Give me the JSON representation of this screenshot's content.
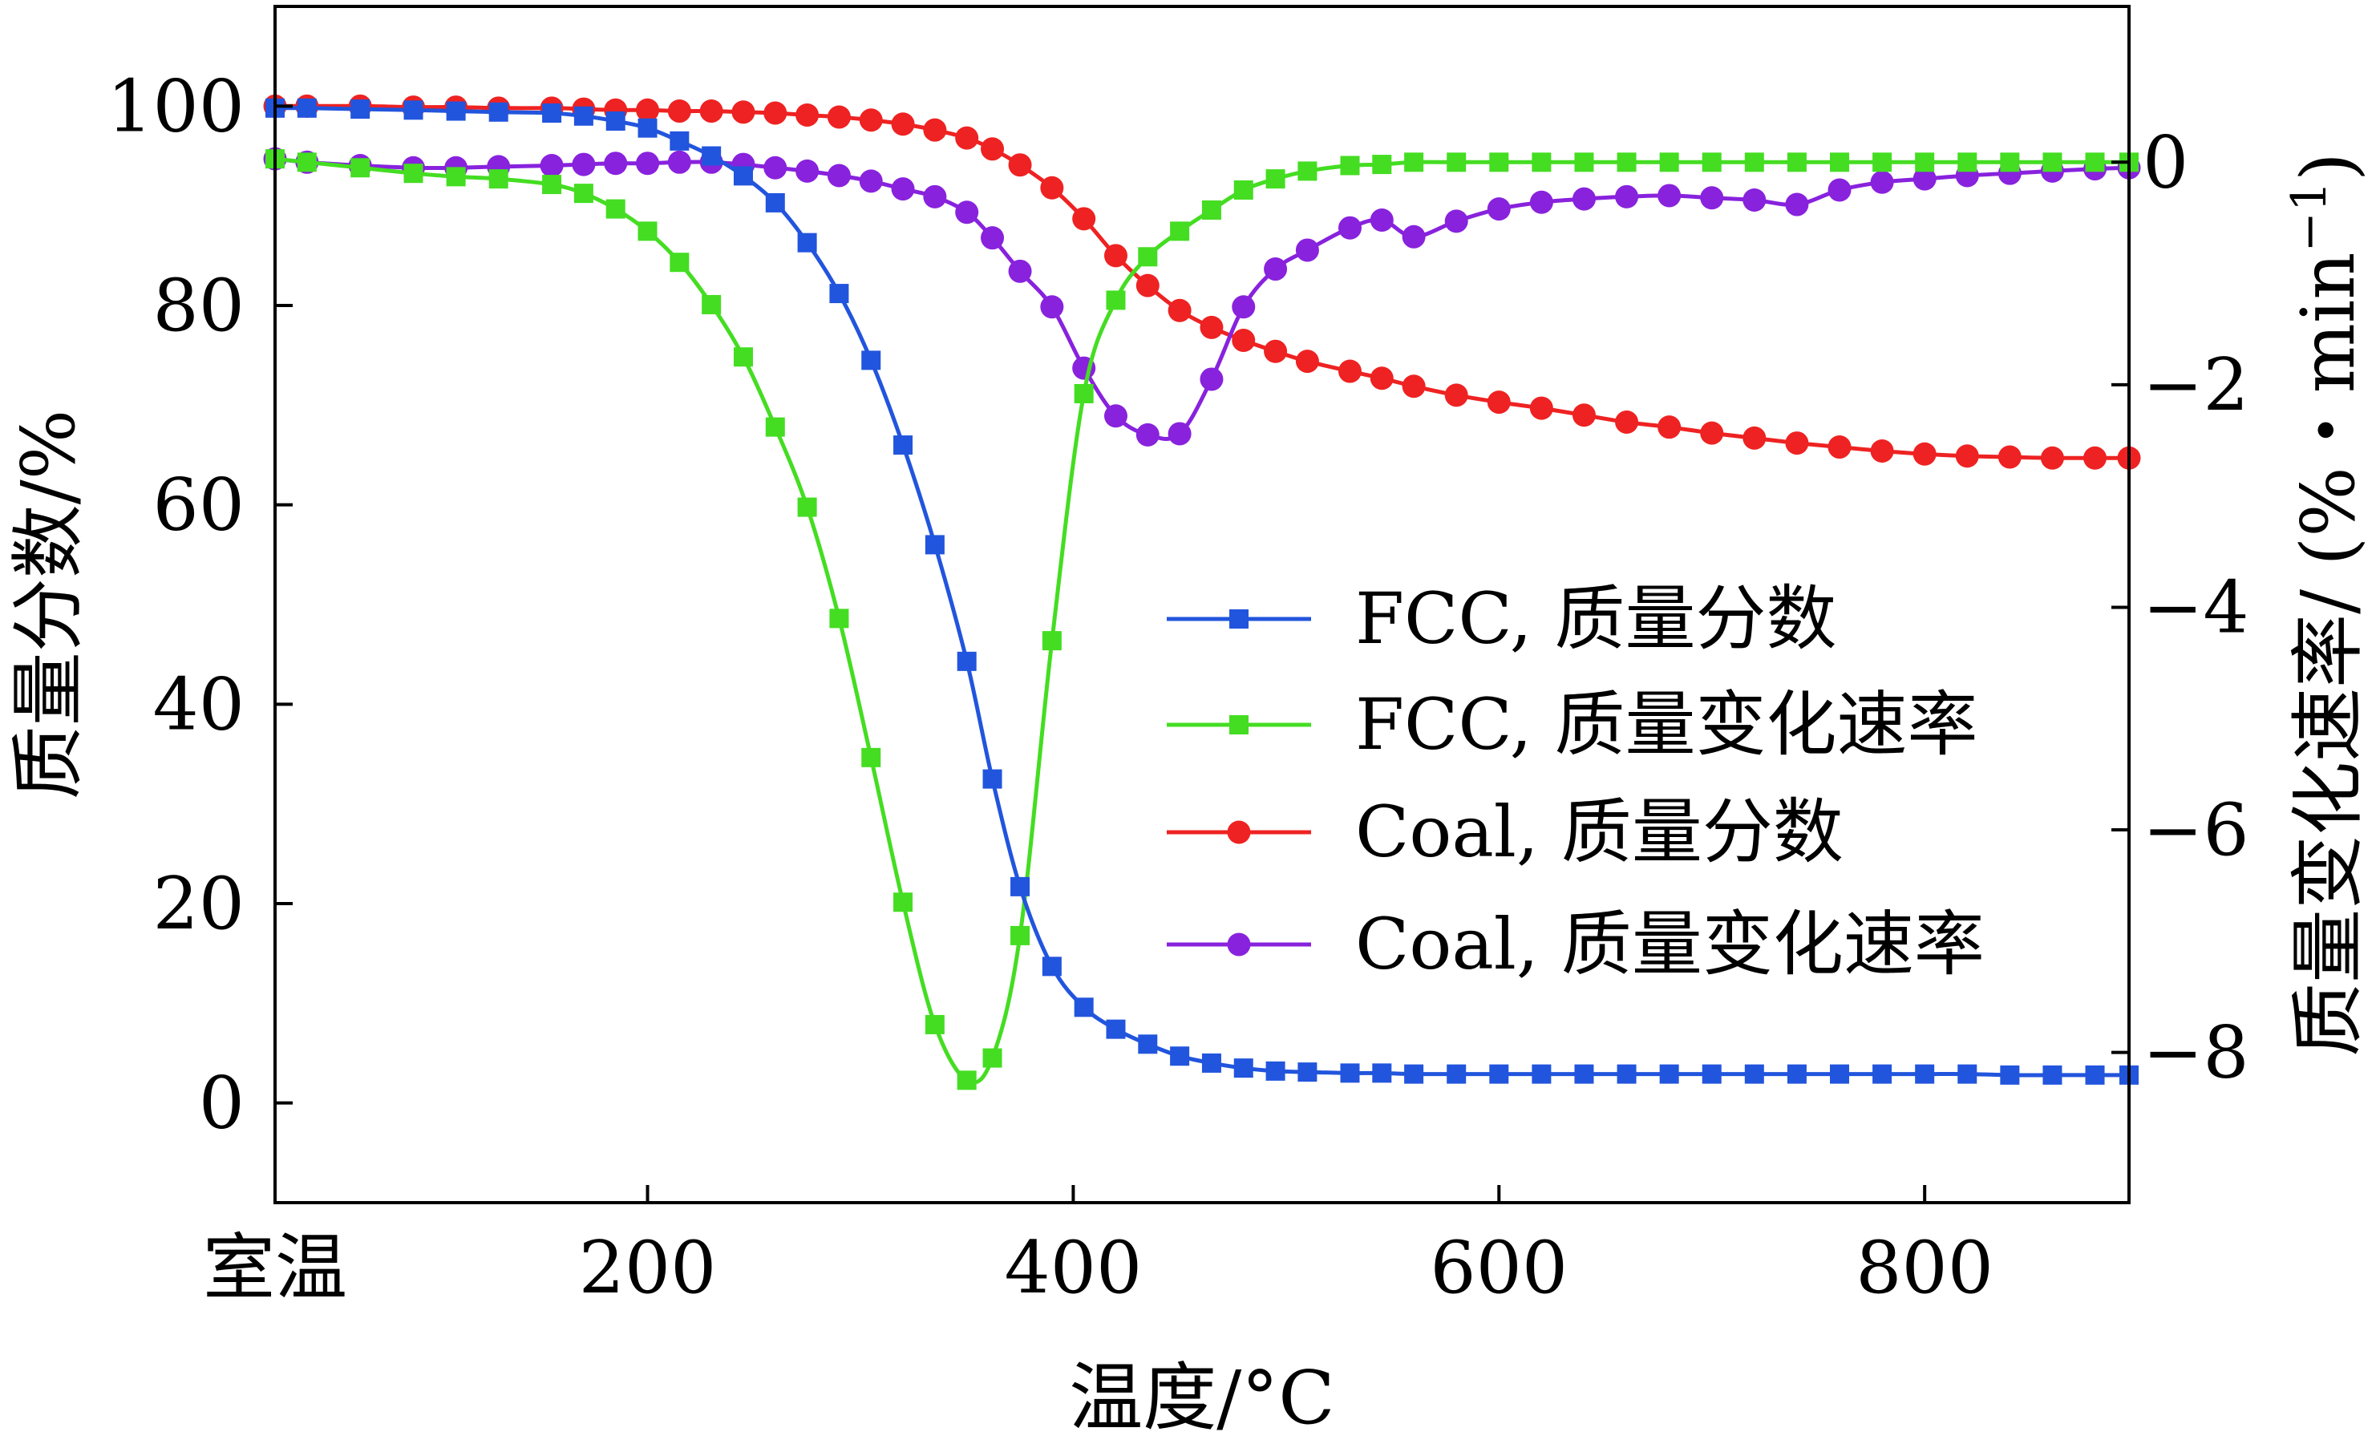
{
  "chart_data": {
    "type": "line",
    "xlabel": "温度/°C",
    "ylabel_left": "质量分数/%",
    "ylabel_right": "质量变化速率/ (%・min",
    "ylabel_right_sup": "−1",
    "ylabel_right_close": ")",
    "x_ticks": [
      {
        "v": 25,
        "label": "室温"
      },
      {
        "v": 200,
        "label": "200"
      },
      {
        "v": 400,
        "label": "400"
      },
      {
        "v": 600,
        "label": "600"
      },
      {
        "v": 800,
        "label": "800"
      }
    ],
    "y_left_ticks": [
      {
        "v": 0,
        "label": "0"
      },
      {
        "v": 20,
        "label": "20"
      },
      {
        "v": 40,
        "label": "40"
      },
      {
        "v": 60,
        "label": "60"
      },
      {
        "v": 80,
        "label": "80"
      },
      {
        "v": 100,
        "label": "100"
      }
    ],
    "y_right_ticks": [
      {
        "v": 0,
        "label": "0"
      },
      {
        "v": -2,
        "label": "−2"
      },
      {
        "v": -4,
        "label": "−4"
      },
      {
        "v": -6,
        "label": "−6"
      },
      {
        "v": -8,
        "label": "−8"
      }
    ],
    "xlim": [
      25,
      896
    ],
    "ylim_left": [
      -10,
      110
    ],
    "ylim_right": [
      -9.35,
      1.4
    ],
    "grid": false,
    "legend_position": "middle-right",
    "series": [
      {
        "name": "FCC, 质量分数",
        "axis": "left",
        "marker": "square",
        "color": "#2255dd",
        "x": [
          25,
          40,
          65,
          90,
          110,
          130,
          155,
          170,
          185,
          200,
          215,
          230,
          245,
          260,
          275,
          290,
          305,
          320,
          335,
          350,
          362,
          375,
          390,
          405,
          420,
          435,
          450,
          465,
          480,
          495,
          510,
          530,
          545,
          560,
          580,
          600,
          620,
          640,
          660,
          680,
          700,
          720,
          740,
          760,
          780,
          800,
          820,
          840,
          860,
          880,
          896
        ],
        "y": [
          99.8,
          99.8,
          99.7,
          99.6,
          99.5,
          99.4,
          99.3,
          99.0,
          98.5,
          97.8,
          96.5,
          95,
          93,
          90.3,
          86.3,
          81.2,
          74.5,
          66,
          56,
          44.3,
          32.5,
          21.7,
          13.7,
          9.6,
          7.4,
          5.9,
          4.7,
          4.0,
          3.5,
          3.2,
          3.1,
          3.0,
          3.0,
          2.9,
          2.9,
          2.9,
          2.9,
          2.9,
          2.9,
          2.9,
          2.9,
          2.9,
          2.9,
          2.9,
          2.9,
          2.9,
          2.9,
          2.8,
          2.8,
          2.8,
          2.8
        ]
      },
      {
        "name": "FCC, 质量变化速率",
        "axis": "right",
        "marker": "square",
        "color": "#44dd22",
        "x": [
          25,
          40,
          65,
          90,
          110,
          130,
          155,
          170,
          185,
          200,
          215,
          230,
          245,
          260,
          275,
          290,
          305,
          320,
          335,
          350,
          362,
          375,
          390,
          405,
          420,
          435,
          450,
          465,
          480,
          495,
          510,
          530,
          545,
          560,
          580,
          600,
          620,
          640,
          660,
          680,
          700,
          720,
          740,
          760,
          780,
          800,
          820,
          840,
          860,
          880,
          896
        ],
        "y": [
          0.03,
          0.0,
          -0.05,
          -0.1,
          -0.13,
          -0.15,
          -0.2,
          -0.28,
          -0.42,
          -0.62,
          -0.9,
          -1.28,
          -1.75,
          -2.38,
          -3.1,
          -4.1,
          -5.35,
          -6.65,
          -7.75,
          -8.25,
          -8.05,
          -6.95,
          -4.3,
          -2.08,
          -1.24,
          -0.85,
          -0.62,
          -0.43,
          -0.25,
          -0.15,
          -0.08,
          -0.03,
          -0.02,
          0.0,
          0.0,
          0.0,
          0.0,
          0.0,
          0.0,
          0.0,
          0.0,
          0.0,
          0.0,
          0.0,
          0.0,
          0.0,
          0.0,
          0.0,
          0.0,
          0.0,
          0.0
        ]
      },
      {
        "name": "Coal, 质量分数",
        "axis": "left",
        "marker": "circle",
        "color": "#ee2222",
        "x": [
          25,
          40,
          65,
          90,
          110,
          130,
          155,
          170,
          185,
          200,
          215,
          230,
          245,
          260,
          275,
          290,
          305,
          320,
          335,
          350,
          362,
          375,
          390,
          405,
          420,
          435,
          450,
          465,
          480,
          495,
          510,
          530,
          545,
          560,
          580,
          600,
          620,
          640,
          660,
          680,
          700,
          720,
          740,
          760,
          780,
          800,
          820,
          840,
          860,
          880,
          896
        ],
        "y": [
          100,
          100,
          100,
          99.9,
          99.9,
          99.8,
          99.8,
          99.7,
          99.6,
          99.6,
          99.5,
          99.5,
          99.4,
          99.3,
          99.1,
          98.9,
          98.6,
          98.2,
          97.6,
          96.8,
          95.7,
          94.1,
          91.8,
          88.7,
          85.0,
          82.0,
          79.5,
          77.8,
          76.5,
          75.4,
          74.4,
          73.4,
          72.7,
          71.9,
          71.0,
          70.3,
          69.7,
          69.0,
          68.3,
          67.8,
          67.2,
          66.7,
          66.2,
          65.8,
          65.4,
          65.1,
          64.9,
          64.8,
          64.7,
          64.7,
          64.7
        ]
      },
      {
        "name": "Coal, 质量变化速率",
        "axis": "right",
        "marker": "circle",
        "color": "#8822dd",
        "x": [
          25,
          40,
          65,
          90,
          110,
          130,
          155,
          170,
          185,
          200,
          215,
          230,
          245,
          260,
          275,
          290,
          305,
          320,
          335,
          350,
          362,
          375,
          390,
          405,
          420,
          435,
          450,
          465,
          480,
          495,
          510,
          530,
          545,
          560,
          580,
          600,
          620,
          640,
          660,
          680,
          700,
          720,
          740,
          760,
          780,
          800,
          820,
          840,
          860,
          880,
          896
        ],
        "y": [
          0.03,
          0.0,
          -0.03,
          -0.05,
          -0.05,
          -0.04,
          -0.03,
          -0.02,
          -0.01,
          -0.01,
          0.0,
          0.0,
          -0.02,
          -0.05,
          -0.08,
          -0.12,
          -0.17,
          -0.24,
          -0.31,
          -0.45,
          -0.68,
          -0.98,
          -1.3,
          -1.85,
          -2.28,
          -2.45,
          -2.44,
          -1.95,
          -1.3,
          -0.96,
          -0.79,
          -0.59,
          -0.52,
          -0.67,
          -0.53,
          -0.42,
          -0.36,
          -0.33,
          -0.31,
          -0.3,
          -0.32,
          -0.34,
          -0.38,
          -0.25,
          -0.18,
          -0.15,
          -0.12,
          -0.1,
          -0.08,
          -0.06,
          -0.05
        ]
      }
    ]
  }
}
